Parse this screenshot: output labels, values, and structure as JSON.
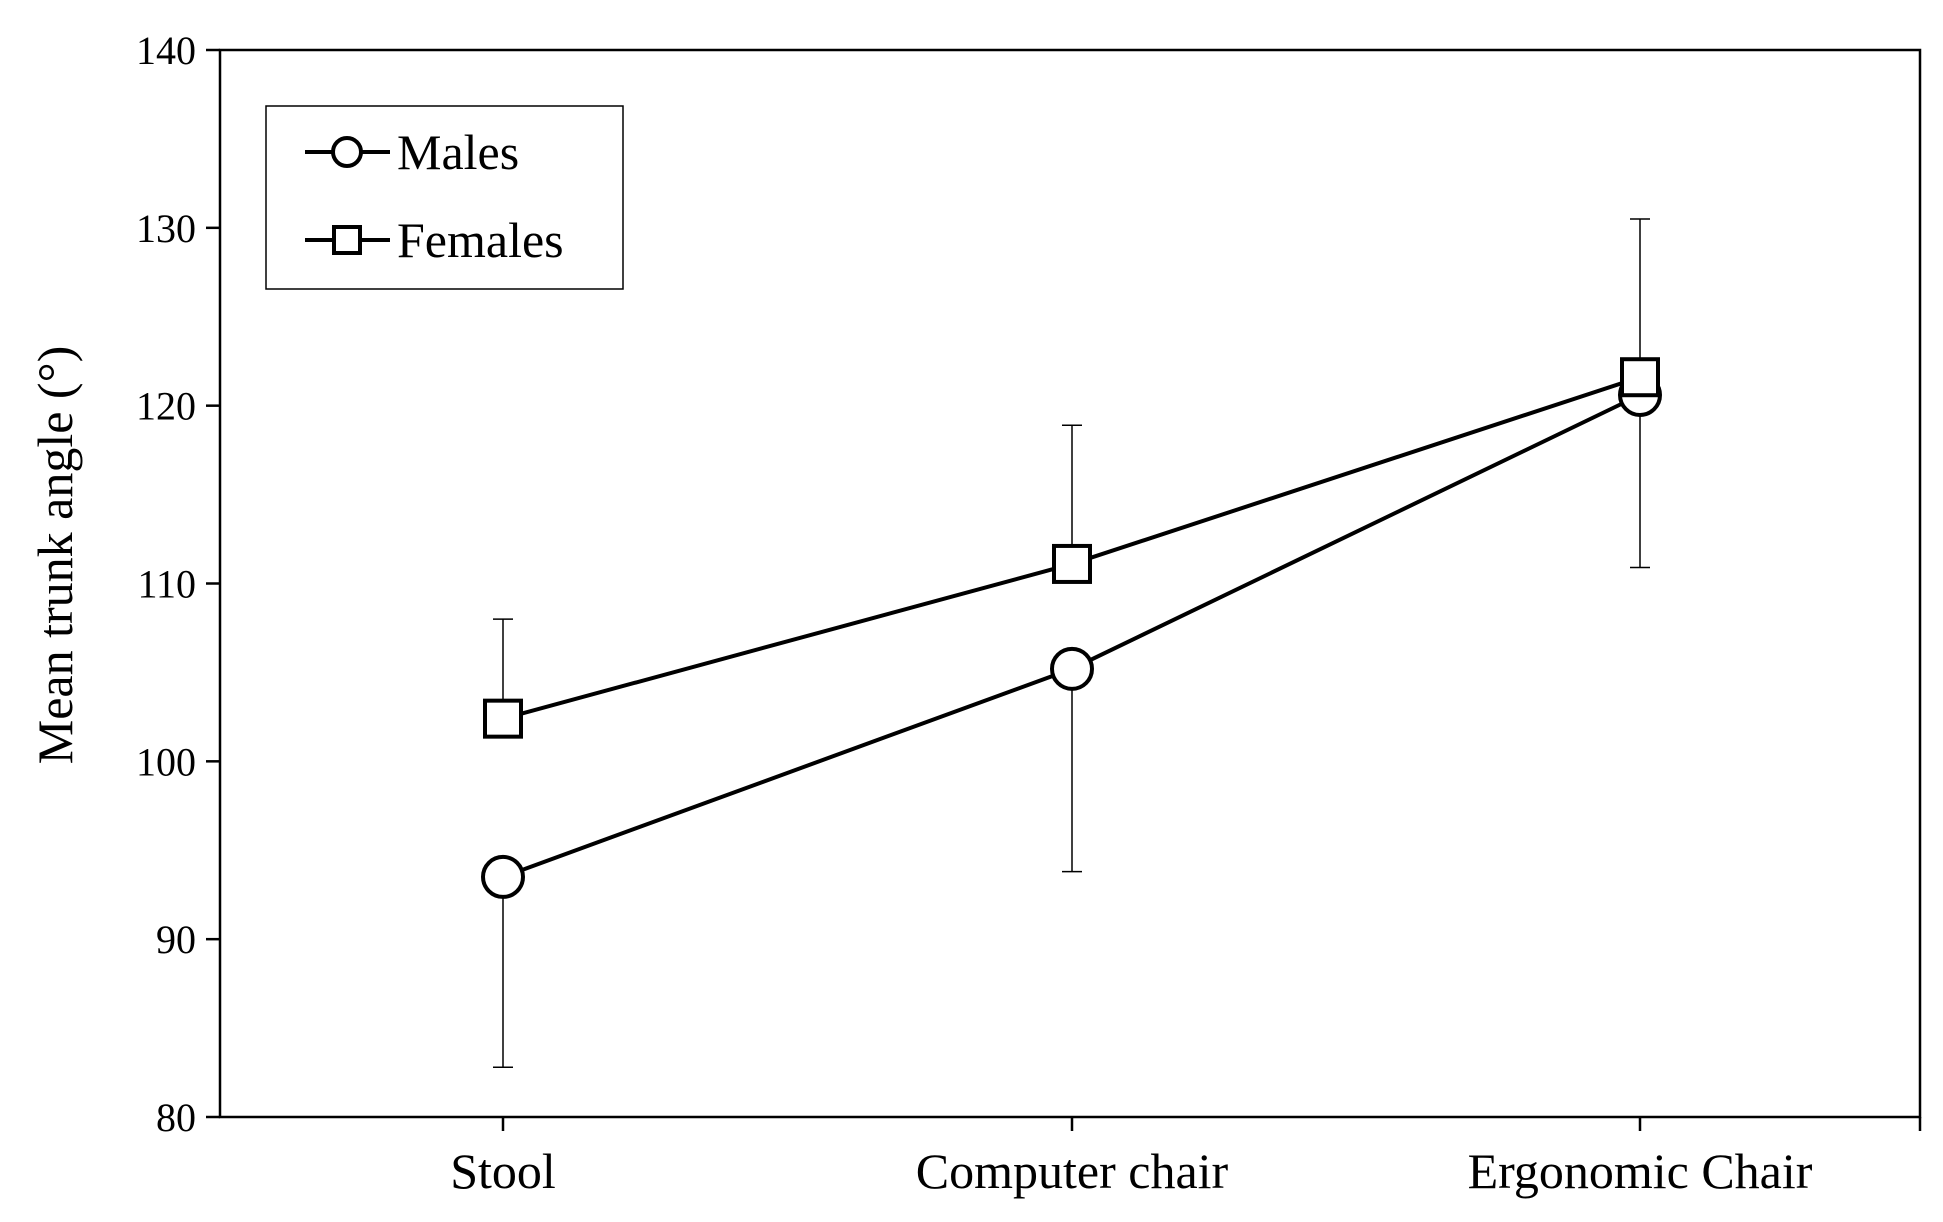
{
  "chart_data": {
    "type": "line",
    "title": "",
    "xlabel": "",
    "ylabel": "Mean trunk angle (°)",
    "categories": [
      "Stool",
      "Computer chair",
      "Ergonomic Chair"
    ],
    "ylim": [
      80,
      140
    ],
    "yticks": [
      80,
      90,
      100,
      110,
      120,
      130,
      140
    ],
    "grid": false,
    "legend_position": "top-left",
    "series": [
      {
        "name": "Males",
        "marker": "circle",
        "values": [
          93.5,
          105.2,
          120.6
        ],
        "error_bars": [
          {
            "low": 82.8,
            "high": 93.5
          },
          {
            "low": 93.8,
            "high": 105.2
          },
          {
            "low": 110.9,
            "high": 120.6
          }
        ]
      },
      {
        "name": "Females",
        "marker": "square",
        "values": [
          102.4,
          111.1,
          121.6
        ],
        "error_bars": [
          {
            "low": 102.4,
            "high": 108.0
          },
          {
            "low": 111.1,
            "high": 118.9
          },
          {
            "low": 121.6,
            "high": 130.5
          }
        ]
      }
    ],
    "colors": {
      "line": "#000000",
      "marker_fill": "#ffffff",
      "background": "#ffffff"
    }
  }
}
